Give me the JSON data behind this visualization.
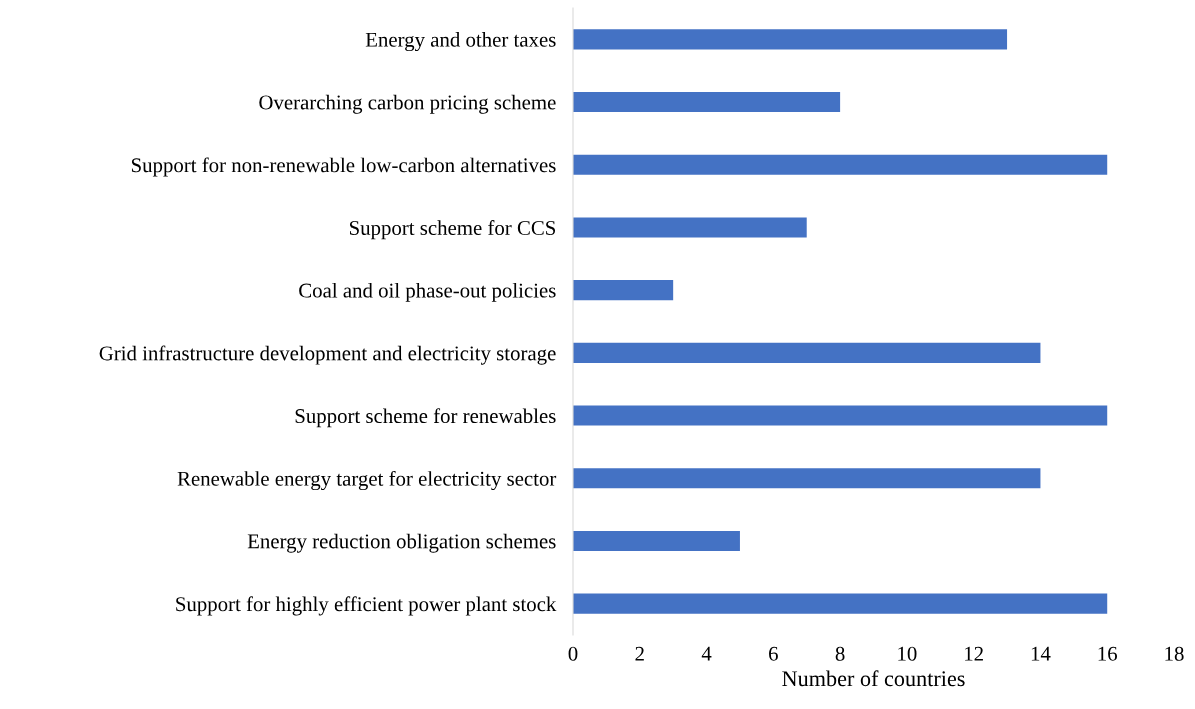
{
  "chart_data": {
    "type": "bar",
    "orientation": "horizontal",
    "xlabel": "Number of countries",
    "categories": [
      "Energy and other taxes",
      "Overarching carbon pricing scheme",
      "Support for non-renewable low-carbon alternatives",
      "Support scheme for CCS",
      "Coal and oil phase-out policies",
      "Grid infrastructure development and electricity storage",
      "Support scheme for renewables",
      "Renewable energy target for electricity sector",
      "Energy reduction obligation schemes",
      "Support for highly efficient power plant stock"
    ],
    "values": [
      13,
      8,
      16,
      7,
      3,
      14,
      16,
      14,
      5,
      16
    ],
    "color": "#4472c4",
    "xlim": [
      0,
      18
    ],
    "xticks": [
      0,
      2,
      4,
      6,
      8,
      10,
      12,
      14,
      16,
      18
    ],
    "grid": false
  }
}
